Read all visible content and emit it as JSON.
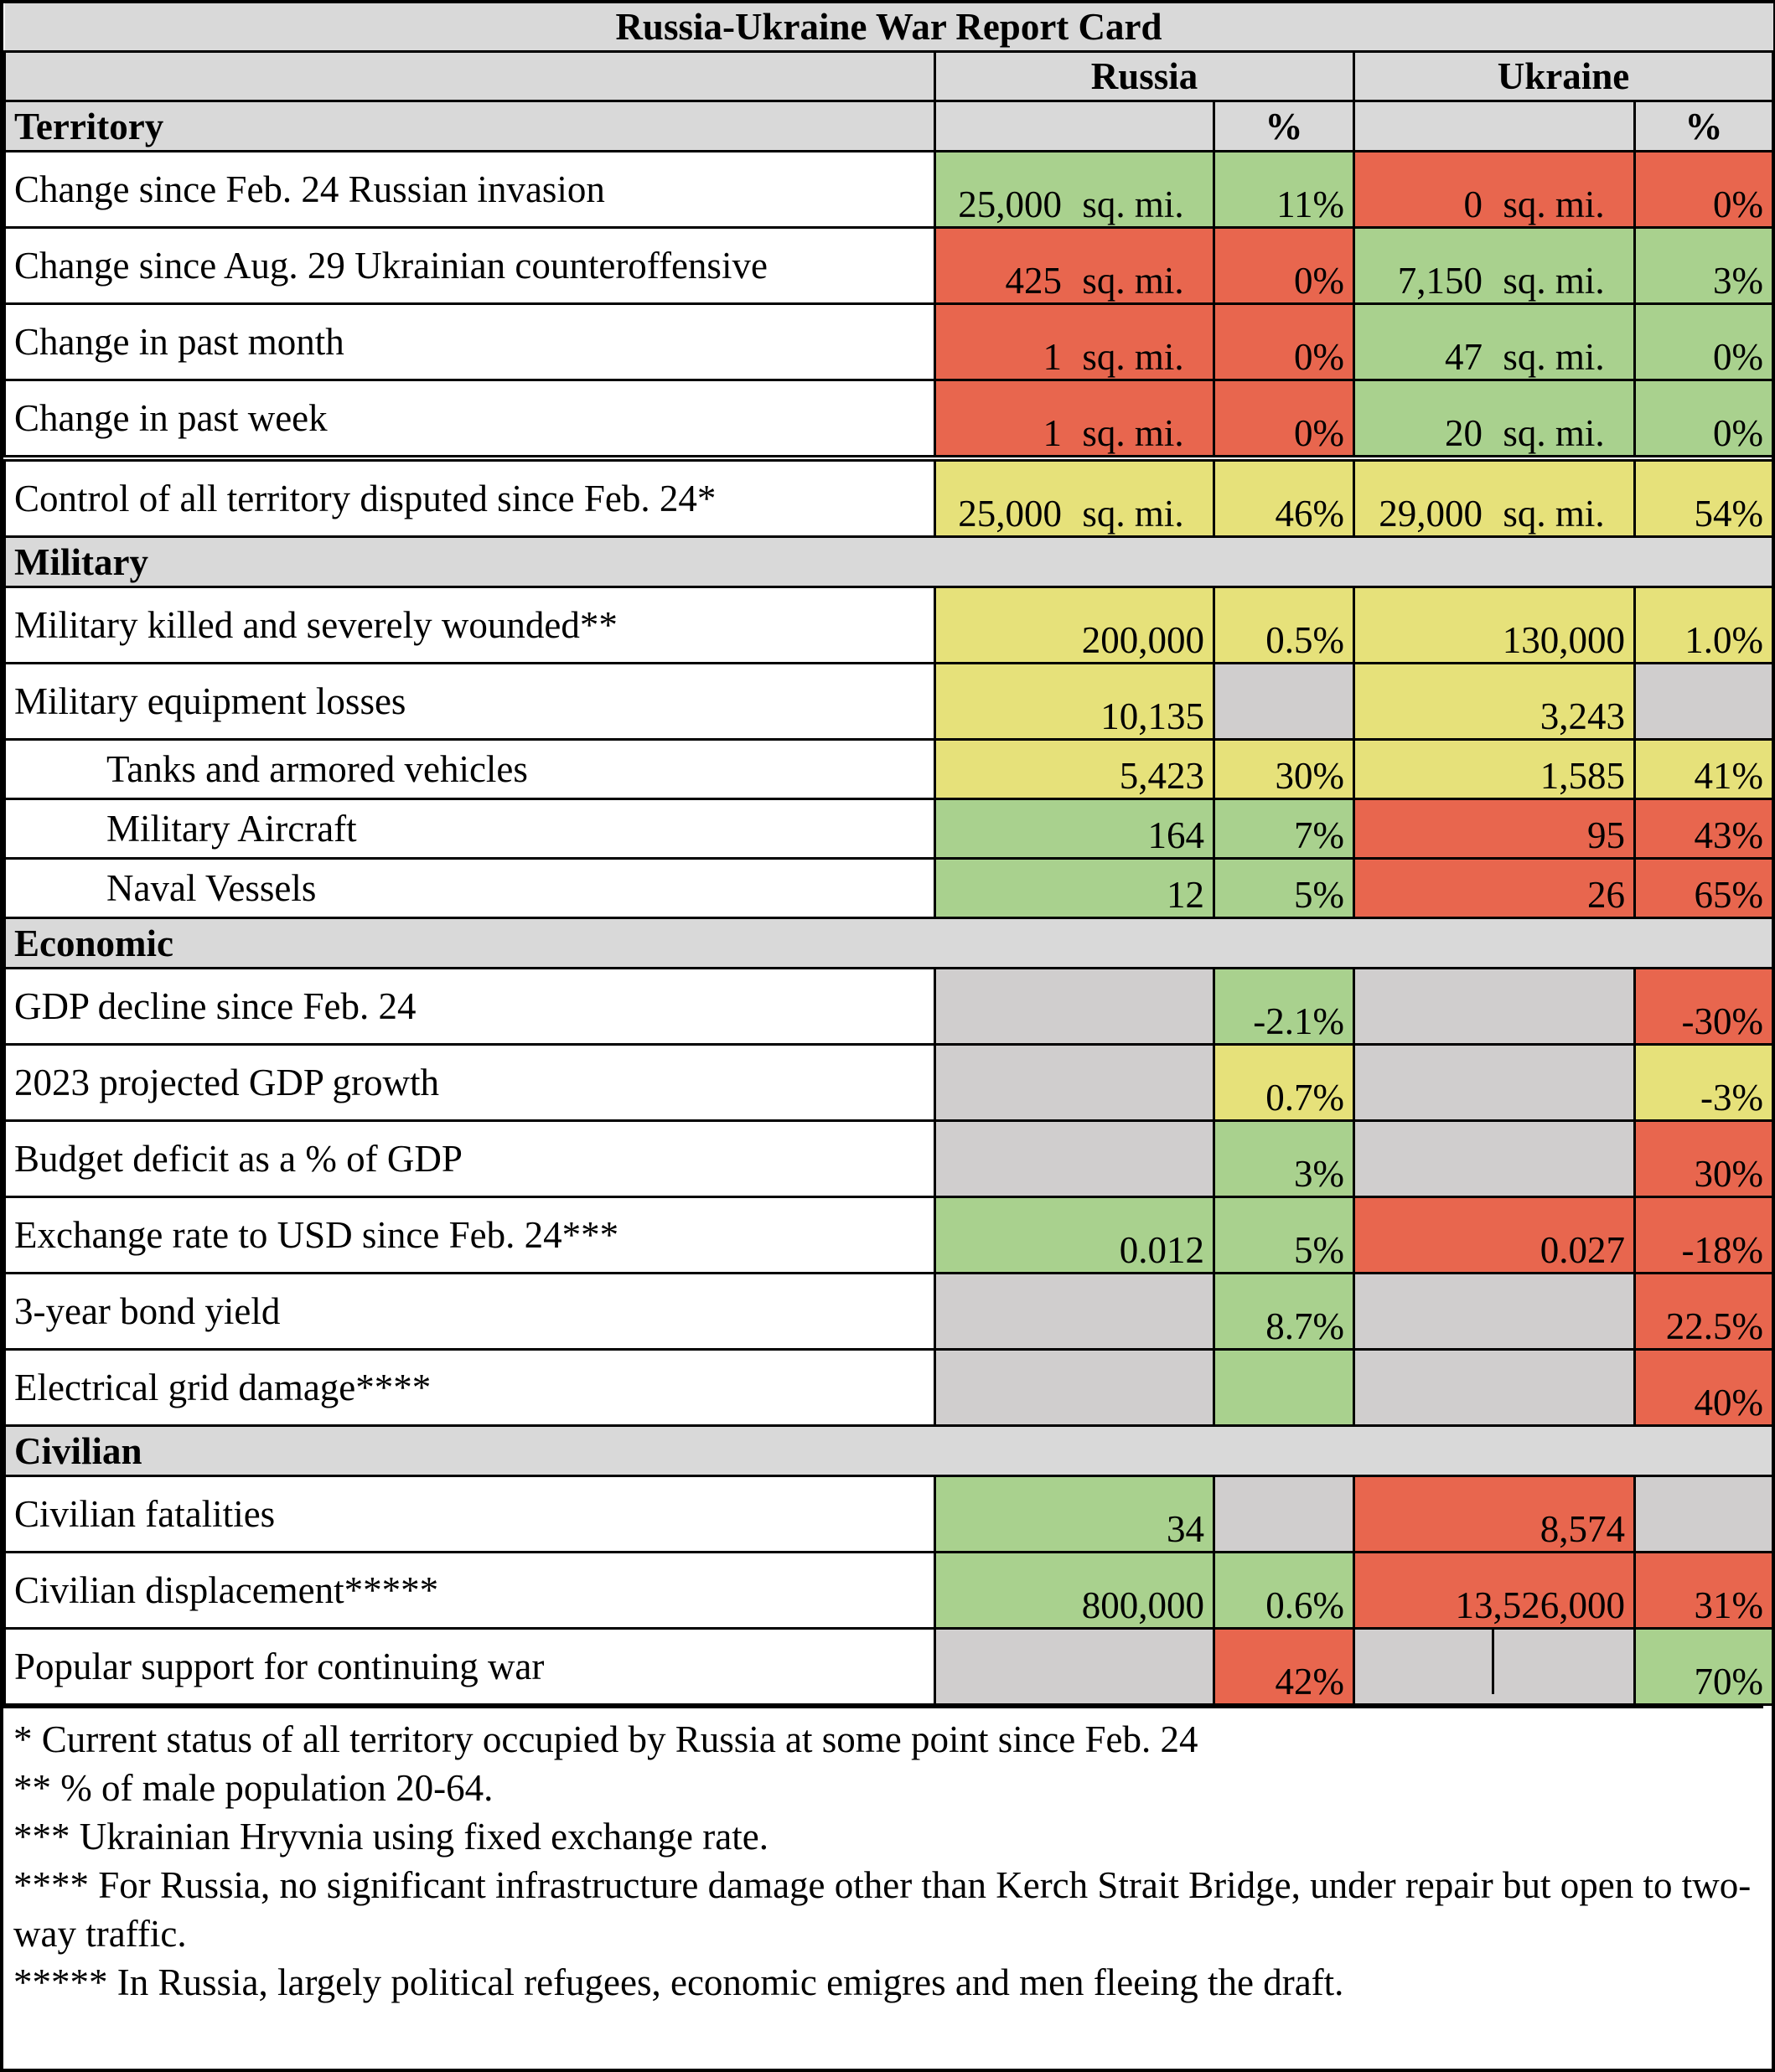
{
  "title": "Russia-Ukraine War Report Card",
  "countries": [
    "Russia",
    "Ukraine"
  ],
  "pct_header": "%",
  "colors": {
    "green": "#a9d18e",
    "red": "#e8664e",
    "yellow": "#e6e17a",
    "gray": "#d0cece",
    "header": "#d9d9d9"
  },
  "sections": {
    "territory": "Territory",
    "military": "Military",
    "economic": "Economic",
    "civilian": "Civilian"
  },
  "unit": "sq. mi.",
  "rows": [
    {
      "label": "Change since Feb. 24 Russian invasion",
      "ru_val": "25,000",
      "ru_pct": "11%",
      "ua_val": "0",
      "ua_pct": "0%"
    },
    {
      "label": "Change since Aug. 29 Ukrainian counteroffensive",
      "ru_val": "425",
      "ru_pct": "0%",
      "ua_val": "7,150",
      "ua_pct": "3%"
    },
    {
      "label": "Change in past month",
      "ru_val": "1",
      "ru_pct": "0%",
      "ua_val": "47",
      "ua_pct": "0%"
    },
    {
      "label": "Change in past week",
      "ru_val": "1",
      "ru_pct": "0%",
      "ua_val": "20",
      "ua_pct": "0%"
    },
    {
      "label": "Control of all territory disputed since Feb. 24*",
      "ru_val": "25,000",
      "ru_pct": "46%",
      "ua_val": "29,000",
      "ua_pct": "54%"
    },
    {
      "label": "Military killed and severely wounded**",
      "ru_val": "200,000",
      "ru_pct": "0.5%",
      "ua_val": "130,000",
      "ua_pct": "1.0%"
    },
    {
      "label": "Military equipment losses",
      "ru_val": "10,135",
      "ru_pct": "",
      "ua_val": "3,243",
      "ua_pct": ""
    },
    {
      "label": "Tanks and armored vehicles",
      "ru_val": "5,423",
      "ru_pct": "30%",
      "ua_val": "1,585",
      "ua_pct": "41%"
    },
    {
      "label": "Military Aircraft",
      "ru_val": "164",
      "ru_pct": "7%",
      "ua_val": "95",
      "ua_pct": "43%"
    },
    {
      "label": "Naval Vessels",
      "ru_val": "12",
      "ru_pct": "5%",
      "ua_val": "26",
      "ua_pct": "65%"
    },
    {
      "label": "GDP decline since Feb. 24",
      "ru_val": "",
      "ru_pct": "-2.1%",
      "ua_val": "",
      "ua_pct": "-30%"
    },
    {
      "label": "2023 projected GDP growth",
      "ru_val": "",
      "ru_pct": "0.7%",
      "ua_val": "",
      "ua_pct": "-3%"
    },
    {
      "label": "Budget deficit as a % of GDP",
      "ru_val": "",
      "ru_pct": "3%",
      "ua_val": "",
      "ua_pct": "30%"
    },
    {
      "label": "Exchange rate to USD since Feb. 24***",
      "ru_val": "0.012",
      "ru_pct": "5%",
      "ua_val": "0.027",
      "ua_pct": "-18%"
    },
    {
      "label": "3-year bond yield",
      "ru_val": "",
      "ru_pct": "8.7%",
      "ua_val": "",
      "ua_pct": "22.5%"
    },
    {
      "label": "Electrical grid damage****",
      "ru_val": "",
      "ru_pct": "",
      "ua_val": "",
      "ua_pct": "40%"
    },
    {
      "label": "Civilian fatalities",
      "ru_val": "34",
      "ru_pct": "",
      "ua_val": "8,574",
      "ua_pct": ""
    },
    {
      "label": "Civilian displacement*****",
      "ru_val": "800,000",
      "ru_pct": "0.6%",
      "ua_val": "13,526,000",
      "ua_pct": "31%"
    },
    {
      "label": "Popular support for continuing war",
      "ru_val": "",
      "ru_pct": "42%",
      "ua_val": "",
      "ua_pct": "70%"
    }
  ],
  "footnotes": [
    "* Current status of all territory occupied by Russia at some point since Feb. 24",
    "** % of male population 20-64.",
    "*** Ukrainian Hryvnia using fixed exchange rate.",
    "**** For Russia, no significant infrastructure damage other than Kerch Strait Bridge, under repair but open to two-way traffic.",
    "***** In Russia, largely political refugees, economic emigres and men fleeing the draft."
  ]
}
